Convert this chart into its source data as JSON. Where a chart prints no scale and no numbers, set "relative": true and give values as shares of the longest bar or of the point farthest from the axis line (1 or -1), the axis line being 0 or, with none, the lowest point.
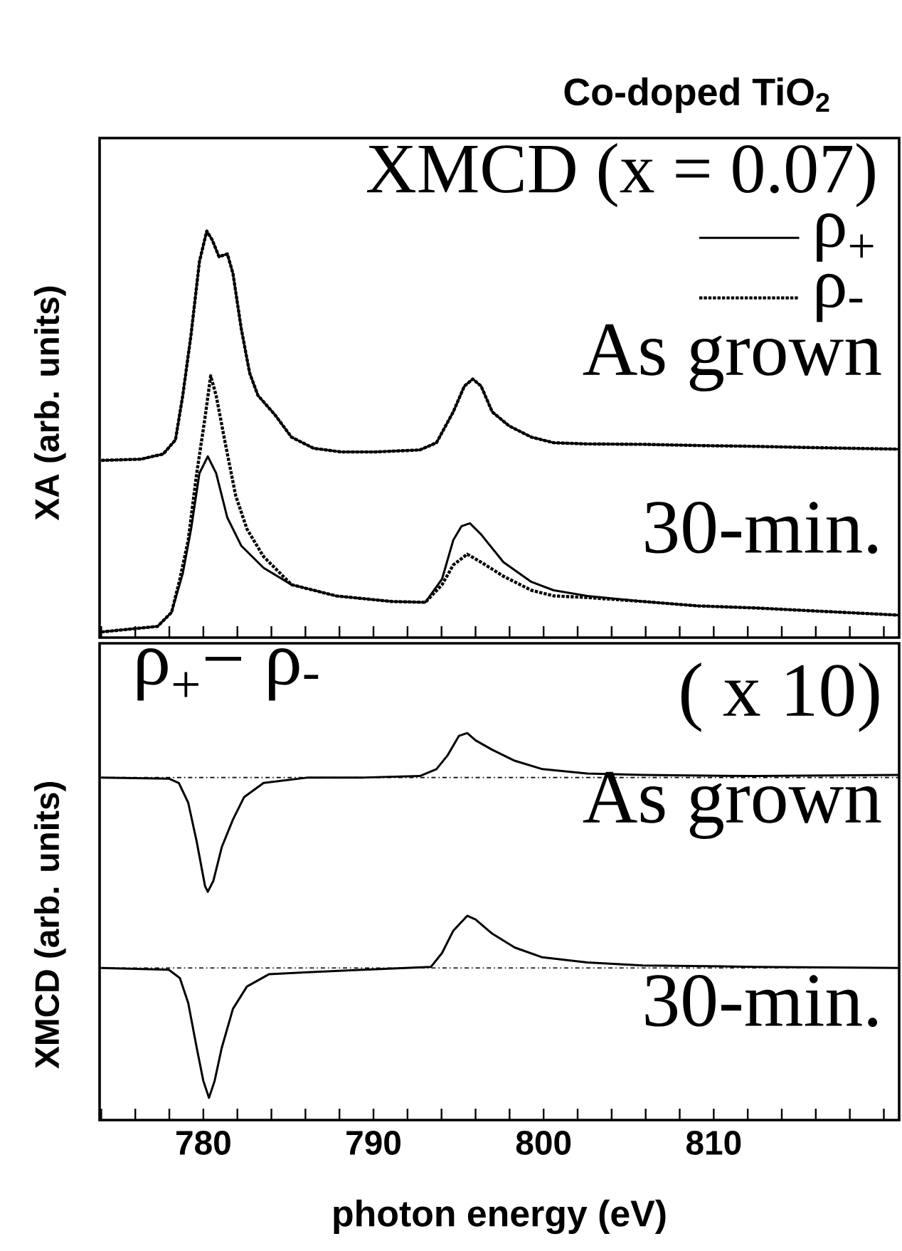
{
  "chart_data": [
    {
      "type": "line",
      "title": "Co-doped TiO$_{2}$",
      "subtitle": "XMCD (x = 0.07)",
      "ylabel": "XA (arb. units)",
      "relative": true,
      "legend": "top right",
      "tick_labels": false,
      "xlim": [
        773.9,
        820.9
      ],
      "xticks": [
        {
          "value": 774,
          "label": null
        },
        {
          "value": 776,
          "label": null
        },
        {
          "value": 778,
          "label": null
        },
        780,
        {
          "value": 782,
          "label": null
        },
        {
          "value": 784,
          "label": null
        },
        {
          "value": 786,
          "label": null
        },
        {
          "value": 788,
          "label": null
        },
        790,
        {
          "value": 792,
          "label": null
        },
        {
          "value": 794,
          "label": null
        },
        {
          "value": 796,
          "label": null
        },
        {
          "value": 798,
          "label": null
        },
        800,
        {
          "value": 802,
          "label": null
        },
        {
          "value": 804,
          "label": null
        },
        {
          "value": 806,
          "label": null
        },
        {
          "value": 808,
          "label": null
        },
        810,
        {
          "value": 812,
          "label": null
        },
        {
          "value": 814,
          "label": null
        },
        {
          "value": 816,
          "label": null
        },
        {
          "value": 818,
          "label": null
        },
        {
          "value": 820,
          "label": null
        }
      ],
      "series": [
        {
          "name": "ρ$_{+}$",
          "color": "#000000",
          "line_style": "solid",
          "x": [
            774.0,
            776.33,
            777.64,
            778.36,
            778.79,
            779.28,
            779.77,
            780.2,
            780.52,
            780.92,
            781.41,
            781.74,
            782.23,
            782.72,
            783.21,
            784.2,
            785.18,
            786.49,
            788.13,
            790.1,
            792.72,
            793.7,
            794.69,
            795.34,
            795.84,
            796.33,
            796.98,
            797.97,
            799.28,
            800.59,
            802.56,
            805.84,
            809.11,
            812.39,
            815.67,
            820.9
          ],
          "values": [
            0.428,
            0.431,
            0.444,
            0.479,
            0.59,
            0.743,
            0.924,
            1.0,
            0.978,
            0.936,
            0.943,
            0.894,
            0.756,
            0.646,
            0.59,
            0.542,
            0.486,
            0.458,
            0.449,
            0.449,
            0.454,
            0.472,
            0.549,
            0.613,
            0.631,
            0.613,
            0.549,
            0.514,
            0.486,
            0.472,
            0.469,
            0.468,
            0.465,
            0.463,
            0.46,
            0.456
          ]
        },
        {
          "name": "ρ$_{-}$",
          "color": "#000000",
          "line_style": "dotted",
          "x": [
            774.0,
            776.33,
            777.64,
            778.36,
            778.79,
            779.28,
            779.77,
            780.2,
            780.52,
            780.92,
            781.41,
            781.74,
            782.23,
            782.72,
            783.21,
            784.2,
            785.18,
            786.49,
            788.13,
            790.1,
            792.72,
            793.7,
            794.69,
            795.34,
            795.84,
            796.33,
            796.98,
            797.97,
            799.28,
            800.59,
            802.56,
            805.84,
            809.11,
            812.39,
            815.67,
            820.9
          ],
          "values": [
            0.428,
            0.431,
            0.444,
            0.479,
            0.59,
            0.743,
            0.924,
            1.0,
            0.978,
            0.936,
            0.943,
            0.894,
            0.756,
            0.646,
            0.59,
            0.542,
            0.486,
            0.458,
            0.449,
            0.449,
            0.454,
            0.472,
            0.549,
            0.613,
            0.631,
            0.613,
            0.549,
            0.514,
            0.486,
            0.472,
            0.469,
            0.468,
            0.465,
            0.463,
            0.46,
            0.456
          ]
        },
        {
          "color": "#000000",
          "line_style": "solid",
          "x": [
            774.0,
            777.31,
            778.13,
            778.79,
            779.28,
            779.77,
            780.26,
            780.75,
            781.41,
            782.23,
            783.54,
            785.18,
            787.8,
            791.08,
            793.05,
            794.03,
            794.69,
            795.18,
            795.67,
            796.33,
            797.64,
            799.28,
            800.59,
            802.56,
            805.84,
            809.11,
            812.39,
            815.67,
            820.9
          ],
          "values": [
            0.0,
            0.014,
            0.049,
            0.146,
            0.257,
            0.396,
            0.438,
            0.396,
            0.285,
            0.215,
            0.16,
            0.118,
            0.09,
            0.076,
            0.074,
            0.132,
            0.229,
            0.264,
            0.271,
            0.243,
            0.174,
            0.125,
            0.104,
            0.09,
            0.076,
            0.065,
            0.06,
            0.053,
            0.042
          ]
        },
        {
          "color": "#000000",
          "line_style": "dotted",
          "x": [
            774.0,
            777.31,
            778.13,
            778.62,
            779.11,
            779.61,
            780.1,
            780.43,
            780.75,
            781.25,
            781.9,
            782.56,
            783.54,
            785.18,
            787.8,
            791.08,
            793.05,
            794.03,
            794.69,
            795.51,
            796.33,
            797.64,
            799.28,
            800.59,
            802.56,
            805.84,
            809.11,
            812.39,
            815.67,
            820.9
          ],
          "values": [
            0.0,
            0.014,
            0.049,
            0.132,
            0.229,
            0.396,
            0.535,
            0.639,
            0.59,
            0.479,
            0.34,
            0.257,
            0.188,
            0.118,
            0.09,
            0.076,
            0.074,
            0.118,
            0.167,
            0.194,
            0.174,
            0.139,
            0.104,
            0.09,
            0.086,
            0.076,
            0.065,
            0.06,
            0.053,
            0.042
          ]
        }
      ],
      "annotations": [
        "As grown",
        "30-min."
      ]
    },
    {
      "type": "line",
      "xlabel": "photon energy (eV)",
      "ylabel": "XMCD (arb. units)",
      "relative": true,
      "tick_labels": "x",
      "xlim": [
        773.9,
        820.9
      ],
      "xticks": [
        {
          "value": 774,
          "label": null
        },
        {
          "value": 776,
          "label": null
        },
        {
          "value": 778,
          "label": null
        },
        780,
        {
          "value": 782,
          "label": null
        },
        {
          "value": 784,
          "label": null
        },
        {
          "value": 786,
          "label": null
        },
        {
          "value": 788,
          "label": null
        },
        790,
        {
          "value": 792,
          "label": null
        },
        {
          "value": 794,
          "label": null
        },
        {
          "value": 796,
          "label": null
        },
        {
          "value": 798,
          "label": null
        },
        800,
        {
          "value": 802,
          "label": null
        },
        {
          "value": 804,
          "label": null
        },
        {
          "value": 806,
          "label": null
        },
        {
          "value": 808,
          "label": null
        },
        810,
        {
          "value": 812,
          "label": null
        },
        {
          "value": 814,
          "label": null
        },
        {
          "value": 816,
          "label": null
        },
        {
          "value": 818,
          "label": null
        },
        {
          "value": 820,
          "label": null
        }
      ],
      "series": [
        {
          "color": "#000000",
          "line_style": "solid",
          "x": [
            774.0,
            777.97,
            778.56,
            779.11,
            779.61,
            780.1,
            780.26,
            780.59,
            781.08,
            781.74,
            782.39,
            783.54,
            786.16,
            789.44,
            792.72,
            793.7,
            794.36,
            795.02,
            795.51,
            796.0,
            796.98,
            798.3,
            799.93,
            802.56,
            805.84,
            812.39,
            820.9
          ],
          "values": [
            0.878,
            0.875,
            0.863,
            0.809,
            0.702,
            0.58,
            0.565,
            0.595,
            0.687,
            0.763,
            0.824,
            0.863,
            0.878,
            0.878,
            0.882,
            0.901,
            0.939,
            0.992,
            1.0,
            0.98,
            0.954,
            0.924,
            0.901,
            0.889,
            0.885,
            0.882,
            0.885
          ]
        },
        {
          "color": "#000000",
          "line_style": "solid",
          "x": [
            774.0,
            777.97,
            778.62,
            779.11,
            779.61,
            780.0,
            780.33,
            780.66,
            781.08,
            781.74,
            782.56,
            783.87,
            786.16,
            789.44,
            793.38,
            794.03,
            794.69,
            795.51,
            796.0,
            796.98,
            798.3,
            799.93,
            802.56,
            805.84,
            812.39,
            820.9
          ],
          "values": [
            0.356,
            0.351,
            0.328,
            0.26,
            0.137,
            0.046,
            0.0,
            0.046,
            0.137,
            0.244,
            0.305,
            0.339,
            0.344,
            0.351,
            0.359,
            0.397,
            0.458,
            0.499,
            0.489,
            0.45,
            0.412,
            0.385,
            0.371,
            0.363,
            0.359,
            0.356
          ]
        }
      ],
      "ref_lines": [
        {
          "axis": "y",
          "value": 0.878,
          "line_style": "dashdot"
        },
        {
          "axis": "y",
          "value": 0.356,
          "line_style": "dashdot"
        }
      ],
      "annotations": [
        "ρ$_{+}$− ρ$_{-}$",
        "( x 10)",
        "As grown",
        "30-min."
      ]
    }
  ]
}
